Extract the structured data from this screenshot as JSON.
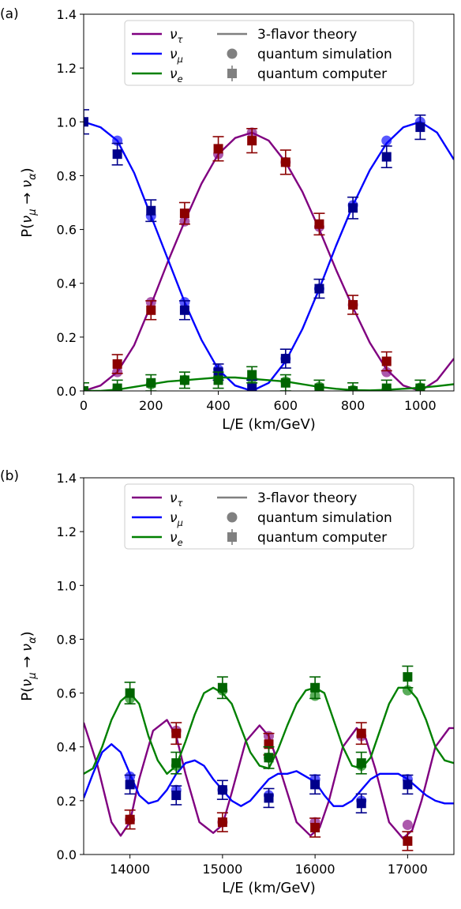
{
  "chart_data": [
    {
      "panel_label": "(a)",
      "type": "line",
      "xlabel": "L/E (km/GeV)",
      "ylabel": "P(ν_μ → ν_α)",
      "xlim": [
        0,
        1100
      ],
      "ylim": [
        0,
        1.4
      ],
      "xticks": [
        0,
        200,
        400,
        600,
        800,
        1000
      ],
      "yticks": [
        0.0,
        0.2,
        0.4,
        0.6,
        0.8,
        1.0,
        1.2,
        1.4
      ],
      "xtick_labels": [
        "0",
        "200",
        "400",
        "600",
        "800",
        "1000"
      ],
      "ytick_labels": [
        "0.0",
        "0.2",
        "0.4",
        "0.6",
        "0.8",
        "1.0",
        "1.2",
        "1.4"
      ],
      "legend": {
        "placement": "top-center",
        "series_entries": [
          {
            "label": "ν",
            "sub": "τ",
            "color": "#800080"
          },
          {
            "label": "ν",
            "sub": "μ",
            "color": "#0000ff"
          },
          {
            "label": "ν",
            "sub": "e",
            "color": "#008000"
          }
        ],
        "style_entries": [
          "3-flavor theory",
          "quantum simulation",
          "quantum computer"
        ]
      },
      "series": [
        {
          "name": "ν_τ",
          "color": "#800080",
          "marker_color": "#8b0000",
          "theory": {
            "x": [
              0,
              50,
              100,
              150,
              200,
              250,
              300,
              350,
              400,
              450,
              500,
              550,
              600,
              650,
              700,
              750,
              800,
              850,
              900,
              950,
              1000,
              1050,
              1100
            ],
            "y": [
              0.0,
              0.02,
              0.07,
              0.17,
              0.32,
              0.48,
              0.63,
              0.77,
              0.88,
              0.94,
              0.96,
              0.93,
              0.85,
              0.74,
              0.6,
              0.45,
              0.31,
              0.18,
              0.08,
              0.02,
              0.0,
              0.04,
              0.12
            ]
          },
          "simulation": {
            "x": [
              100,
              200,
              300,
              400,
              500,
              600,
              700,
              800,
              900
            ],
            "y": [
              0.07,
              0.33,
              0.63,
              0.88,
              0.96,
              0.85,
              0.61,
              0.32,
              0.07
            ]
          },
          "computer": {
            "x": [
              100,
              200,
              300,
              400,
              500,
              600,
              700,
              800,
              900
            ],
            "y": [
              0.1,
              0.3,
              0.66,
              0.9,
              0.93,
              0.85,
              0.62,
              0.32,
              0.11
            ],
            "err": [
              0.035,
              0.035,
              0.04,
              0.045,
              0.045,
              0.045,
              0.04,
              0.035,
              0.035
            ]
          }
        },
        {
          "name": "ν_μ",
          "color": "#0000ff",
          "marker_color": "#00008b",
          "theory": {
            "x": [
              0,
              50,
              100,
              150,
              200,
              250,
              300,
              350,
              400,
              450,
              500,
              550,
              600,
              650,
              700,
              750,
              800,
              850,
              900,
              950,
              1000,
              1050,
              1100
            ],
            "y": [
              1.0,
              0.98,
              0.93,
              0.81,
              0.65,
              0.49,
              0.33,
              0.19,
              0.08,
              0.02,
              0.0,
              0.03,
              0.11,
              0.23,
              0.38,
              0.54,
              0.69,
              0.82,
              0.92,
              0.98,
              1.0,
              0.96,
              0.86
            ]
          },
          "simulation": {
            "x": [
              100,
              200,
              300,
              400,
              500,
              600,
              700,
              800,
              900,
              1000
            ],
            "y": [
              0.93,
              0.65,
              0.33,
              0.08,
              0.0,
              0.12,
              0.38,
              0.69,
              0.93,
              1.0
            ]
          },
          "computer": {
            "x": [
              0,
              100,
              200,
              300,
              400,
              500,
              600,
              700,
              800,
              900,
              1000
            ],
            "y": [
              1.0,
              0.88,
              0.67,
              0.3,
              0.07,
              0.01,
              0.12,
              0.38,
              0.68,
              0.87,
              0.98
            ],
            "err": [
              0.045,
              0.04,
              0.04,
              0.035,
              0.03,
              0.03,
              0.035,
              0.035,
              0.04,
              0.04,
              0.045
            ]
          }
        },
        {
          "name": "ν_e",
          "color": "#008000",
          "marker_color": "#006400",
          "theory": {
            "x": [
              0,
              50,
              100,
              150,
              200,
              250,
              300,
              350,
              400,
              450,
              500,
              550,
              600,
              650,
              700,
              750,
              800,
              850,
              900,
              950,
              1000,
              1050,
              1100
            ],
            "y": [
              0.0,
              0.0,
              0.005,
              0.015,
              0.025,
              0.035,
              0.04,
              0.045,
              0.05,
              0.05,
              0.045,
              0.04,
              0.035,
              0.025,
              0.015,
              0.008,
              0.003,
              0.002,
              0.004,
              0.008,
              0.012,
              0.018,
              0.025
            ]
          },
          "simulation": {
            "x": [
              100,
              200,
              300,
              400,
              500,
              600,
              700,
              800,
              900,
              1000
            ],
            "y": [
              0.005,
              0.025,
              0.04,
              0.05,
              0.045,
              0.035,
              0.015,
              0.003,
              0.004,
              0.012
            ]
          },
          "computer": {
            "x": [
              0,
              100,
              200,
              300,
              400,
              500,
              600,
              700,
              800,
              900,
              1000
            ],
            "y": [
              0.0,
              0.01,
              0.03,
              0.04,
              0.04,
              0.06,
              0.03,
              0.01,
              0.0,
              0.01,
              0.01
            ],
            "err": [
              0.03,
              0.03,
              0.03,
              0.03,
              0.03,
              0.03,
              0.03,
              0.03,
              0.03,
              0.03,
              0.03
            ]
          }
        }
      ]
    },
    {
      "panel_label": "(b)",
      "type": "line",
      "xlabel": "L/E (km/GeV)",
      "ylabel": "P(ν_μ → ν_α)",
      "xlim": [
        13500,
        17500
      ],
      "ylim": [
        0,
        1.4
      ],
      "xticks": [
        14000,
        15000,
        16000,
        17000
      ],
      "yticks": [
        0.0,
        0.2,
        0.4,
        0.6,
        0.8,
        1.0,
        1.2,
        1.4
      ],
      "xtick_labels": [
        "14000",
        "15000",
        "16000",
        "17000"
      ],
      "ytick_labels": [
        "0.0",
        "0.2",
        "0.4",
        "0.6",
        "0.8",
        "1.0",
        "1.2",
        "1.4"
      ],
      "legend": {
        "placement": "top-center",
        "series_entries": [
          {
            "label": "ν",
            "sub": "τ",
            "color": "#800080"
          },
          {
            "label": "ν",
            "sub": "μ",
            "color": "#0000ff"
          },
          {
            "label": "ν",
            "sub": "e",
            "color": "#008000"
          }
        ],
        "style_entries": [
          "3-flavor theory",
          "quantum simulation",
          "quantum computer"
        ]
      },
      "series": [
        {
          "name": "ν_τ",
          "color": "#800080",
          "marker_color": "#8b0000",
          "theory": {
            "x": [
              13500,
              13650,
              13800,
              13900,
              14000,
              14100,
              14250,
              14400,
              14500,
              14600,
              14750,
              14900,
              15000,
              15100,
              15250,
              15400,
              15500,
              15600,
              15800,
              15950,
              16050,
              16150,
              16300,
              16450,
              16550,
              16650,
              16800,
              16950,
              17050,
              17150,
              17300,
              17450,
              17500
            ],
            "y": [
              0.49,
              0.33,
              0.12,
              0.07,
              0.12,
              0.28,
              0.46,
              0.5,
              0.44,
              0.3,
              0.12,
              0.08,
              0.11,
              0.23,
              0.42,
              0.48,
              0.44,
              0.34,
              0.12,
              0.07,
              0.1,
              0.2,
              0.4,
              0.47,
              0.43,
              0.32,
              0.12,
              0.06,
              0.09,
              0.2,
              0.4,
              0.47,
              0.47
            ]
          },
          "simulation": {
            "x": [
              14000,
              14500,
              15000,
              15500,
              16000,
              16500,
              17000
            ],
            "y": [
              0.13,
              0.46,
              0.12,
              0.44,
              0.12,
              0.44,
              0.11
            ]
          },
          "computer": {
            "x": [
              14000,
              14500,
              15000,
              15500,
              16000,
              16500,
              17000
            ],
            "y": [
              0.13,
              0.45,
              0.12,
              0.41,
              0.1,
              0.45,
              0.05
            ],
            "err": [
              0.035,
              0.04,
              0.035,
              0.04,
              0.035,
              0.04,
              0.035
            ]
          }
        },
        {
          "name": "ν_μ",
          "color": "#0000ff",
          "marker_color": "#00008b",
          "theory": {
            "x": [
              13500,
              13600,
              13700,
              13800,
              13900,
              14000,
              14100,
              14200,
              14300,
              14400,
              14500,
              14600,
              14700,
              14800,
              14900,
              15000,
              15100,
              15200,
              15300,
              15400,
              15500,
              15600,
              15700,
              15800,
              15900,
              16000,
              16100,
              16200,
              16300,
              16400,
              16500,
              16600,
              16700,
              16800,
              16900,
              17000,
              17100,
              17200,
              17300,
              17400,
              17500
            ],
            "y": [
              0.21,
              0.3,
              0.38,
              0.41,
              0.38,
              0.3,
              0.22,
              0.19,
              0.2,
              0.24,
              0.3,
              0.34,
              0.35,
              0.33,
              0.28,
              0.24,
              0.2,
              0.18,
              0.2,
              0.24,
              0.28,
              0.3,
              0.3,
              0.31,
              0.29,
              0.27,
              0.22,
              0.18,
              0.18,
              0.2,
              0.24,
              0.28,
              0.3,
              0.3,
              0.3,
              0.28,
              0.25,
              0.22,
              0.2,
              0.19,
              0.19
            ]
          },
          "simulation": {
            "x": [
              14000,
              14500,
              15000,
              15500,
              16000,
              16500,
              17000
            ],
            "y": [
              0.29,
              0.24,
              0.24,
              0.22,
              0.28,
              0.2,
              0.28
            ]
          },
          "computer": {
            "x": [
              14000,
              14500,
              15000,
              15500,
              16000,
              16500,
              17000
            ],
            "y": [
              0.26,
              0.22,
              0.24,
              0.21,
              0.26,
              0.19,
              0.26
            ],
            "err": [
              0.035,
              0.035,
              0.035,
              0.035,
              0.035,
              0.035,
              0.035
            ]
          }
        },
        {
          "name": "ν_e",
          "color": "#008000",
          "marker_color": "#006400",
          "theory": {
            "x": [
              13500,
              13600,
              13700,
              13800,
              13900,
              14000,
              14100,
              14200,
              14300,
              14400,
              14500,
              14600,
              14700,
              14800,
              14900,
              15000,
              15100,
              15200,
              15300,
              15400,
              15500,
              15600,
              15700,
              15800,
              15900,
              16000,
              16100,
              16200,
              16300,
              16400,
              16500,
              16600,
              16700,
              16800,
              16900,
              17000,
              17100,
              17200,
              17300,
              17400,
              17500
            ],
            "y": [
              0.3,
              0.32,
              0.4,
              0.5,
              0.57,
              0.6,
              0.56,
              0.44,
              0.35,
              0.3,
              0.33,
              0.42,
              0.52,
              0.6,
              0.62,
              0.6,
              0.56,
              0.47,
              0.38,
              0.33,
              0.32,
              0.39,
              0.48,
              0.56,
              0.61,
              0.62,
              0.6,
              0.5,
              0.4,
              0.33,
              0.32,
              0.36,
              0.46,
              0.56,
              0.62,
              0.62,
              0.58,
              0.5,
              0.4,
              0.35,
              0.34
            ]
          },
          "simulation": {
            "x": [
              14000,
              14500,
              15000,
              15500,
              16000,
              16500,
              17000
            ],
            "y": [
              0.58,
              0.33,
              0.61,
              0.36,
              0.59,
              0.33,
              0.61
            ]
          },
          "computer": {
            "x": [
              14000,
              14500,
              15000,
              15500,
              16000,
              16500,
              17000
            ],
            "y": [
              0.6,
              0.34,
              0.62,
              0.36,
              0.62,
              0.34,
              0.66
            ],
            "err": [
              0.04,
              0.04,
              0.04,
              0.04,
              0.04,
              0.04,
              0.04
            ]
          }
        }
      ]
    }
  ]
}
